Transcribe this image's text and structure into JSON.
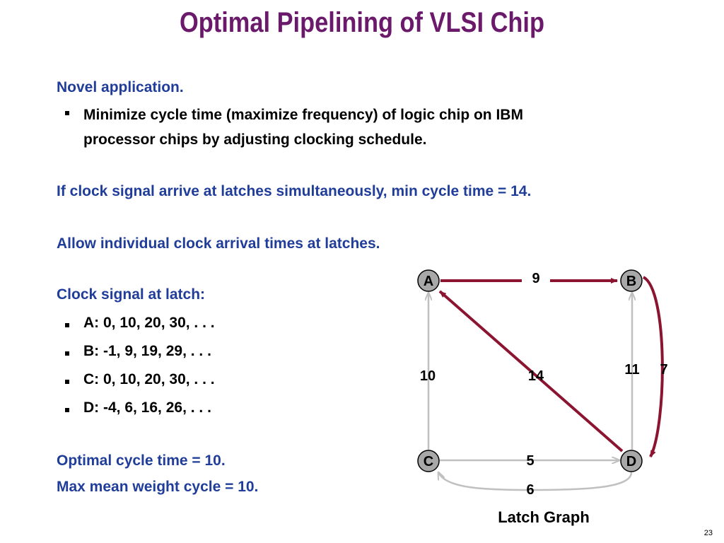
{
  "title": "Optimal Pipelining of VLSI Chip",
  "text": {
    "novel": "Novel application.",
    "bullet1_line1": "Minimize cycle time (maximize frequency) of logic chip on IBM",
    "bullet1_line2": "processor chips by adjusting clocking schedule.",
    "simultaneous": "If clock signal arrive at latches simultaneously, min cycle time = 14.",
    "allow": "Allow individual clock arrival times at latches.",
    "clock_signal": "Clock signal at latch:",
    "clock_items": [
      "A:  0, 10, 20, 30, . . .",
      "B:  -1, 9, 19, 29, . . .",
      "C:  0, 10, 20, 30, . . .",
      "D: -4, 6, 16, 26, . . ."
    ],
    "optimal": "Optimal cycle time = 10.",
    "max_mean": "Max mean weight cycle = 10."
  },
  "graph": {
    "caption": "Latch Graph",
    "nodes": [
      "A",
      "B",
      "C",
      "D"
    ],
    "weights": {
      "A_B": "9",
      "C_A": "10",
      "D_A": "14",
      "D_B": "11",
      "B_D": "7",
      "C_D": "5",
      "D_C": "6"
    },
    "colors": {
      "highlight": "#8b1530",
      "normal": "#c0c0c0",
      "node_fill": "#a8a8a8"
    }
  },
  "page_number": "23"
}
